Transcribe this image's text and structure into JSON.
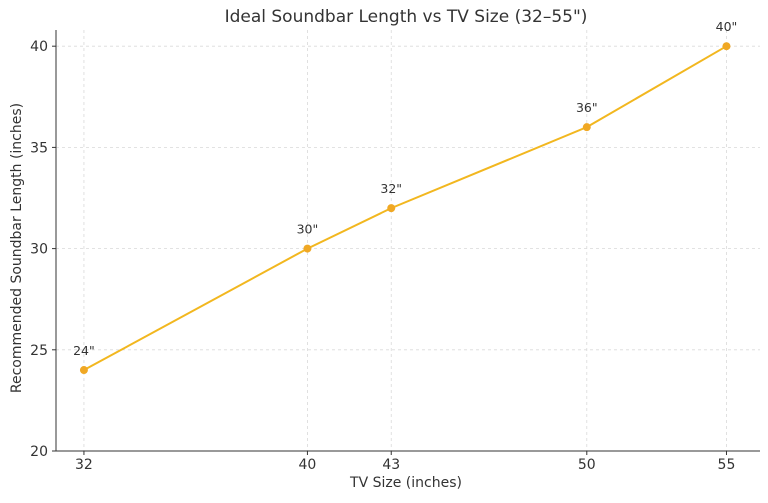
{
  "chart_data": {
    "type": "line",
    "title": "Ideal Soundbar Length vs TV Size (32–55\")",
    "xlabel": "TV Size (inches)",
    "ylabel": "Recommended Soundbar Length (inches)",
    "x": [
      32,
      40,
      43,
      50,
      55
    ],
    "x_ticks": [
      "32",
      "40",
      "43",
      "50",
      "55"
    ],
    "y_ticks": [
      20,
      25,
      30,
      35,
      40
    ],
    "xlim": [
      31,
      56.2
    ],
    "ylim": [
      20,
      40.8
    ],
    "grid": true,
    "series": [
      {
        "values": [
          24,
          30,
          32,
          36,
          40
        ],
        "data_labels": [
          "24\"",
          "30\"",
          "32\"",
          "36\"",
          "40\""
        ],
        "color": "#f2b71f",
        "marker_color": "#f0a824"
      }
    ]
  }
}
